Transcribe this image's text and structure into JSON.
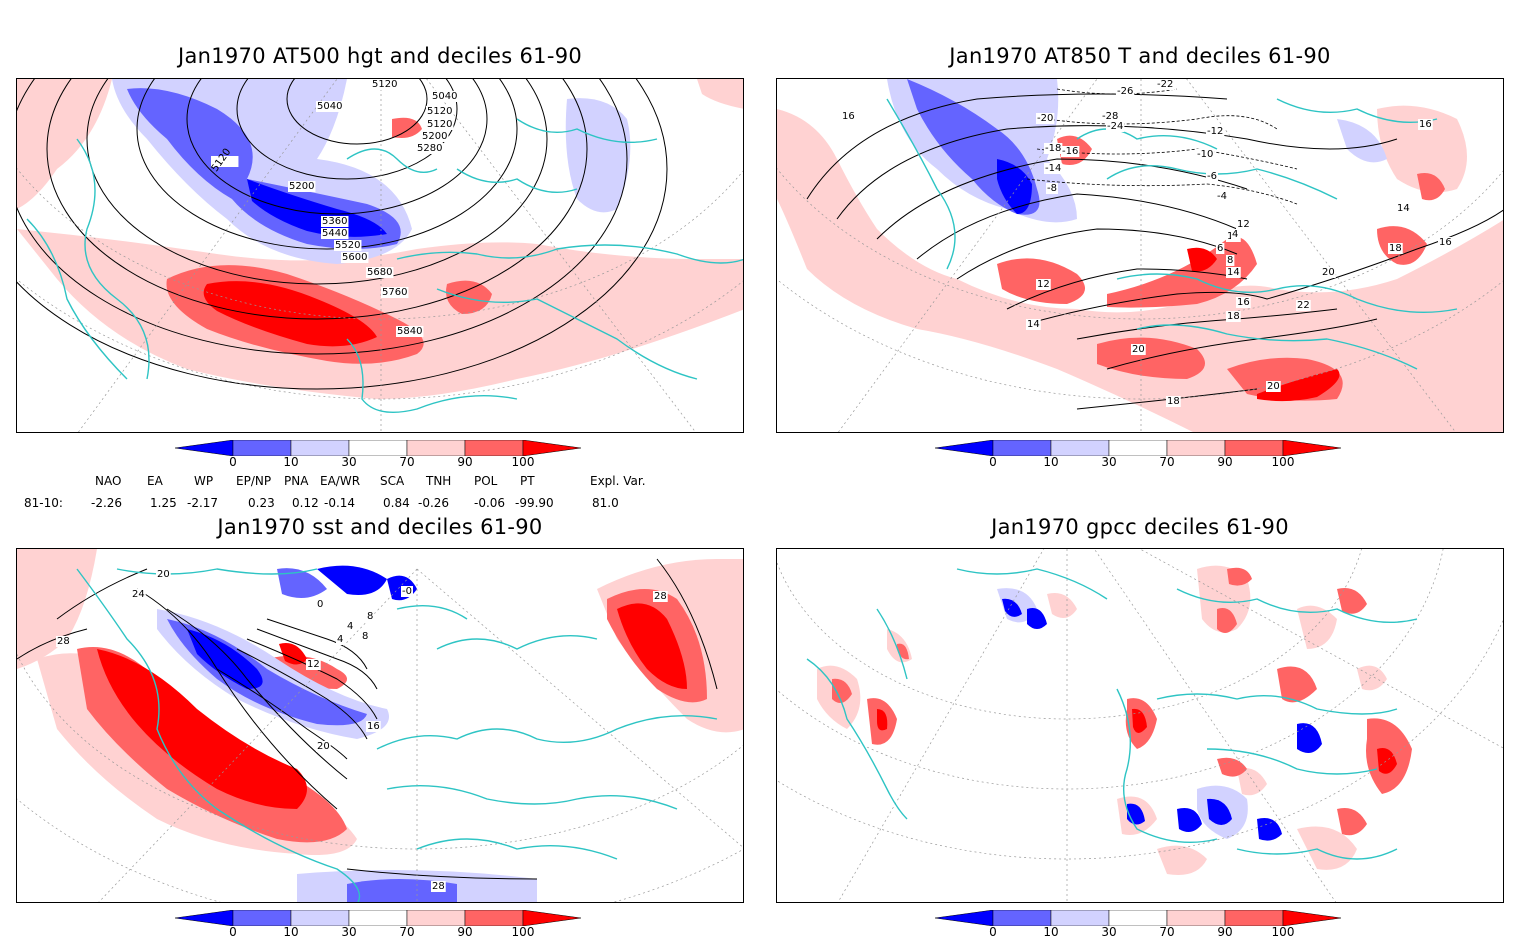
{
  "panels": [
    {
      "title": "Jan1970 AT500 hgt and deciles 61-90",
      "contour_labels": [
        "5120",
        "5040",
        "5120",
        "5040",
        "5120",
        "5200",
        "5280",
        "5120",
        "5200",
        "5360",
        "5440",
        "5520",
        "5600",
        "5680",
        "5760",
        "5840"
      ]
    },
    {
      "title": "Jan1970 AT850 T and deciles 61-90",
      "contour_labels": [
        "-26",
        "-22",
        "-20",
        "-28",
        "-24",
        "-12",
        "-16",
        "-18",
        "-14",
        "-8",
        "-10",
        "-6",
        "-4",
        "16",
        "16",
        "14",
        "12",
        "10",
        "6",
        "4",
        "8",
        "18",
        "16",
        "20",
        "12",
        "14",
        "16",
        "22",
        "18",
        "20",
        "14",
        "20",
        "18"
      ]
    },
    {
      "title": "Jan1970 sst and deciles 61-90",
      "contour_labels": [
        "20",
        "24",
        "28",
        "0",
        "-0",
        "4",
        "8",
        "12",
        "16",
        "20",
        "4",
        "8",
        "28",
        "28"
      ]
    },
    {
      "title": "Jan1970 gpcc deciles 61-90",
      "contour_labels": []
    }
  ],
  "colorbar": {
    "tick_labels": [
      "0",
      "10",
      "30",
      "70",
      "90",
      "100"
    ],
    "colors": [
      "#0000ff",
      "#6464ff",
      "#d2d2ff",
      "#ffffff",
      "#ffd2d2",
      "#ff6464",
      "#ff0000"
    ]
  },
  "indices": {
    "headers": [
      "NAO",
      "EA",
      "WP",
      "EP/NP",
      "PNA",
      "EA/WR",
      "SCA",
      "TNH",
      "POL",
      "PT",
      "Expl. Var."
    ],
    "row_label": "81-10:",
    "values": [
      "-2.26",
      "1.25",
      "-2.17",
      "0.23",
      "0.12",
      "-0.14",
      "0.84",
      "-0.26",
      "-0.06",
      "-99.90",
      "81.0"
    ]
  },
  "colors": {
    "coastline": "#2ec4c4",
    "strong_neg": "#0000ff",
    "mid_neg": "#6464ff",
    "weak_neg": "#d2d2ff",
    "weak_pos": "#ffd2d2",
    "mid_pos": "#ff6464",
    "strong_pos": "#ff0000",
    "contour": "#000000",
    "grid": "#999999"
  }
}
